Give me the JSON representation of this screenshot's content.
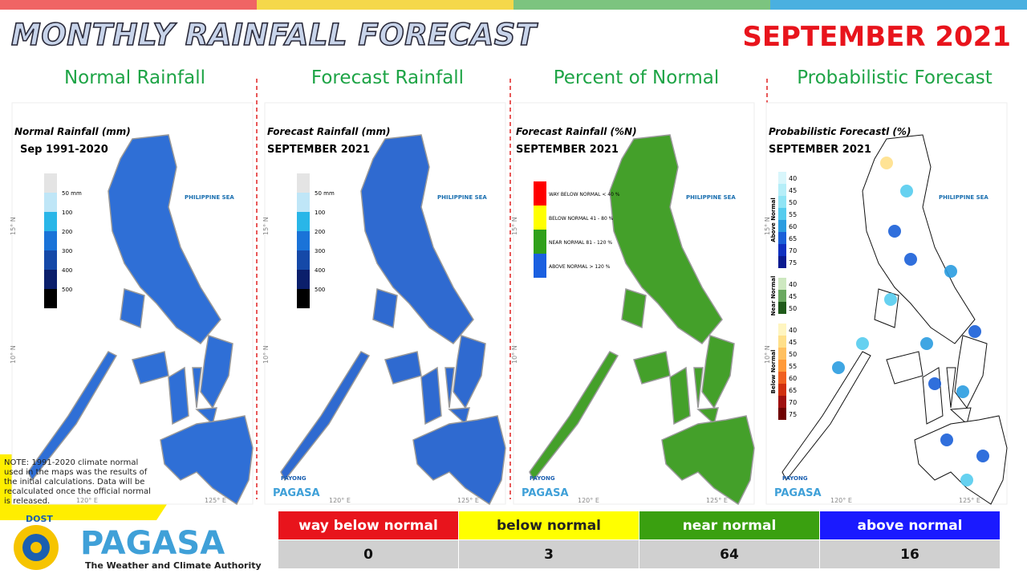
{
  "header": {
    "title": "MONTHLY RAINFALL FORECAST",
    "month": "SEPTEMBER 2021"
  },
  "panels": [
    {
      "title": "Normal Rainfall",
      "map_title": "Normal Rainfall (mm)",
      "map_subtitle": "Sep 1991-2020",
      "legend": [
        "50 mm",
        "100",
        "200",
        "300",
        "400",
        "500"
      ]
    },
    {
      "title": "Forecast Rainfall",
      "map_title": "Forecast Rainfall (mm)",
      "map_subtitle": "SEPTEMBER 2021",
      "legend": [
        "50 mm",
        "100",
        "200",
        "300",
        "400",
        "500"
      ]
    },
    {
      "title": "Percent of Normal",
      "map_title": "Forecast Rainfall (%N)",
      "map_subtitle": "SEPTEMBER 2021",
      "legend": [
        "WAY BELOW NORMAL < 40 %",
        "BELOW NORMAL 41 - 80 %",
        "NEAR NORMAL 81 - 120 %",
        "ABOVE NORMAL > 120 %"
      ]
    },
    {
      "title": "Probabilistic Forecast",
      "map_title": "Probabilistic Forecastl (%)",
      "map_subtitle": "SEPTEMBER 2021",
      "legend_groups": [
        {
          "name": "Above Normal",
          "levels": [
            40,
            45,
            50,
            55,
            60,
            65,
            70,
            75
          ]
        },
        {
          "name": "Near Normal",
          "levels": [
            40,
            45,
            50
          ]
        },
        {
          "name": "Below Normal",
          "levels": [
            40,
            45,
            50,
            55,
            60,
            65,
            70,
            75
          ]
        }
      ]
    }
  ],
  "map_labels": {
    "sea": "PHILIPPINE SEA",
    "lat": [
      "15° N",
      "10° N"
    ],
    "lon": [
      "120° E",
      "125° E"
    ]
  },
  "note": "NOTE: 1991-2020 climate normal used in the maps was the results of the initial calculations. Data will be recalculated once the official normal is released.",
  "logo": {
    "agency": "DOST",
    "name": "PAGASA",
    "tagline": "The Weather and Climate Authority",
    "payong": "PAYONG"
  },
  "table": {
    "header": [
      "way below normal",
      "below normal",
      "near normal",
      "above normal"
    ],
    "rows": [
      [
        0,
        3,
        64,
        16
      ]
    ]
  }
}
